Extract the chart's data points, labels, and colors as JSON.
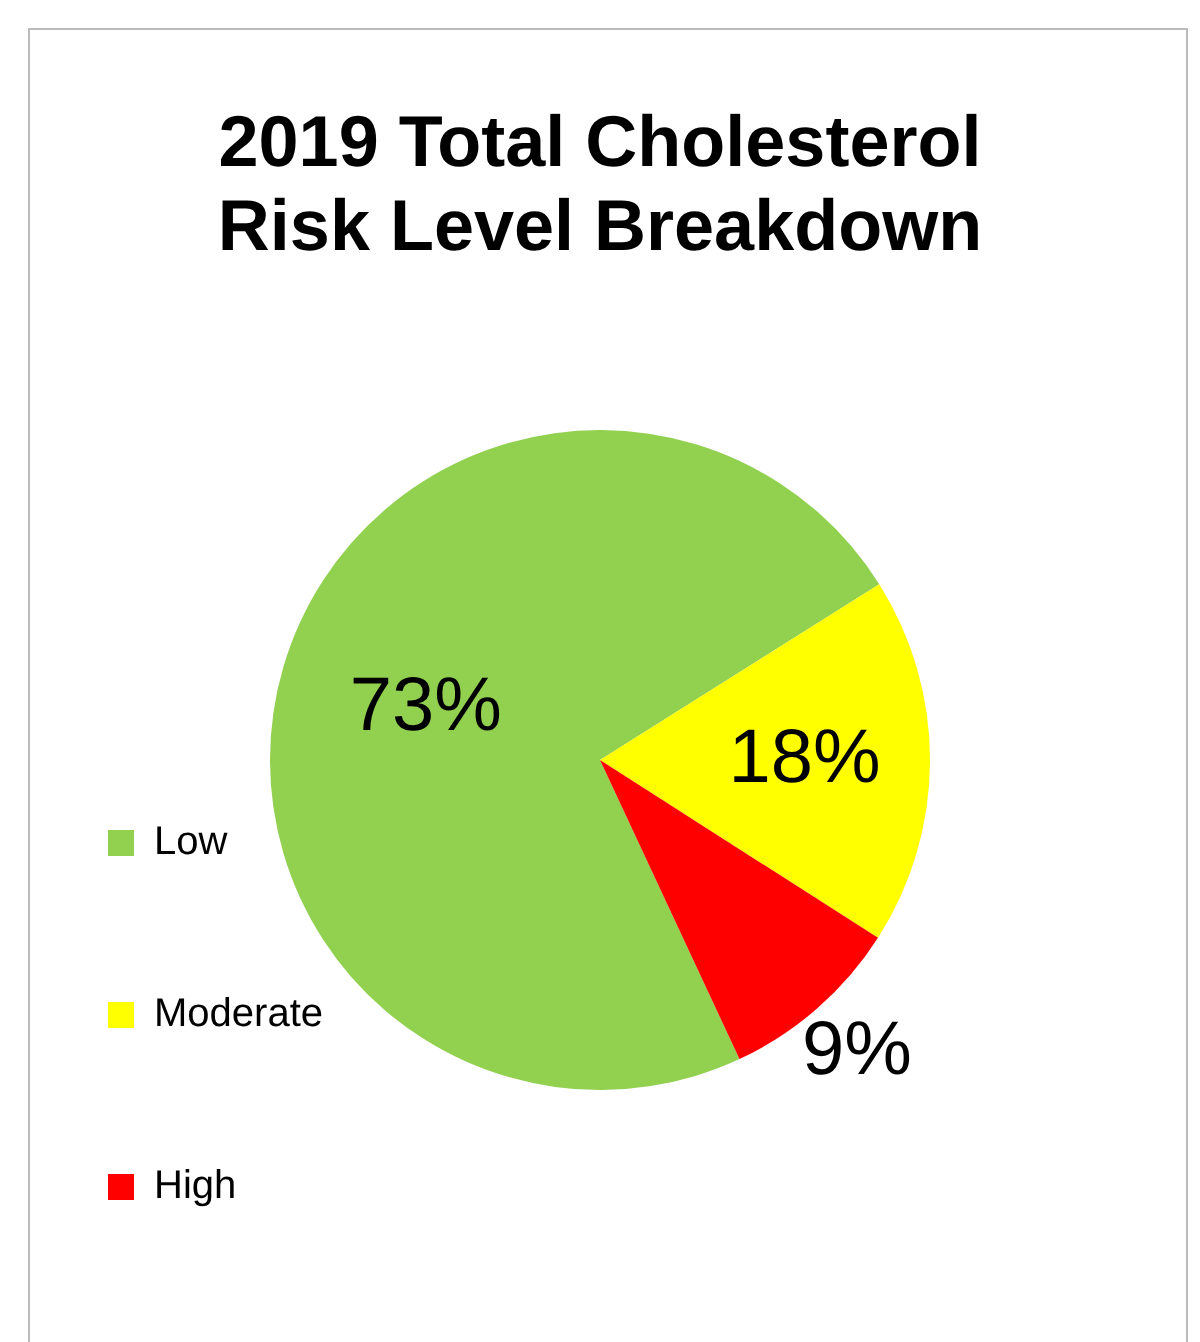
{
  "chart_data": {
    "type": "pie",
    "title": "2019 Total Cholesterol Risk Level Breakdown",
    "categories": [
      "Low",
      "Moderate",
      "High"
    ],
    "values": [
      73,
      18,
      9
    ],
    "colors": [
      "#92d050",
      "#ffff00",
      "#ff0000"
    ],
    "value_labels": [
      "73%",
      "18%",
      "9%"
    ],
    "legend": "left"
  }
}
